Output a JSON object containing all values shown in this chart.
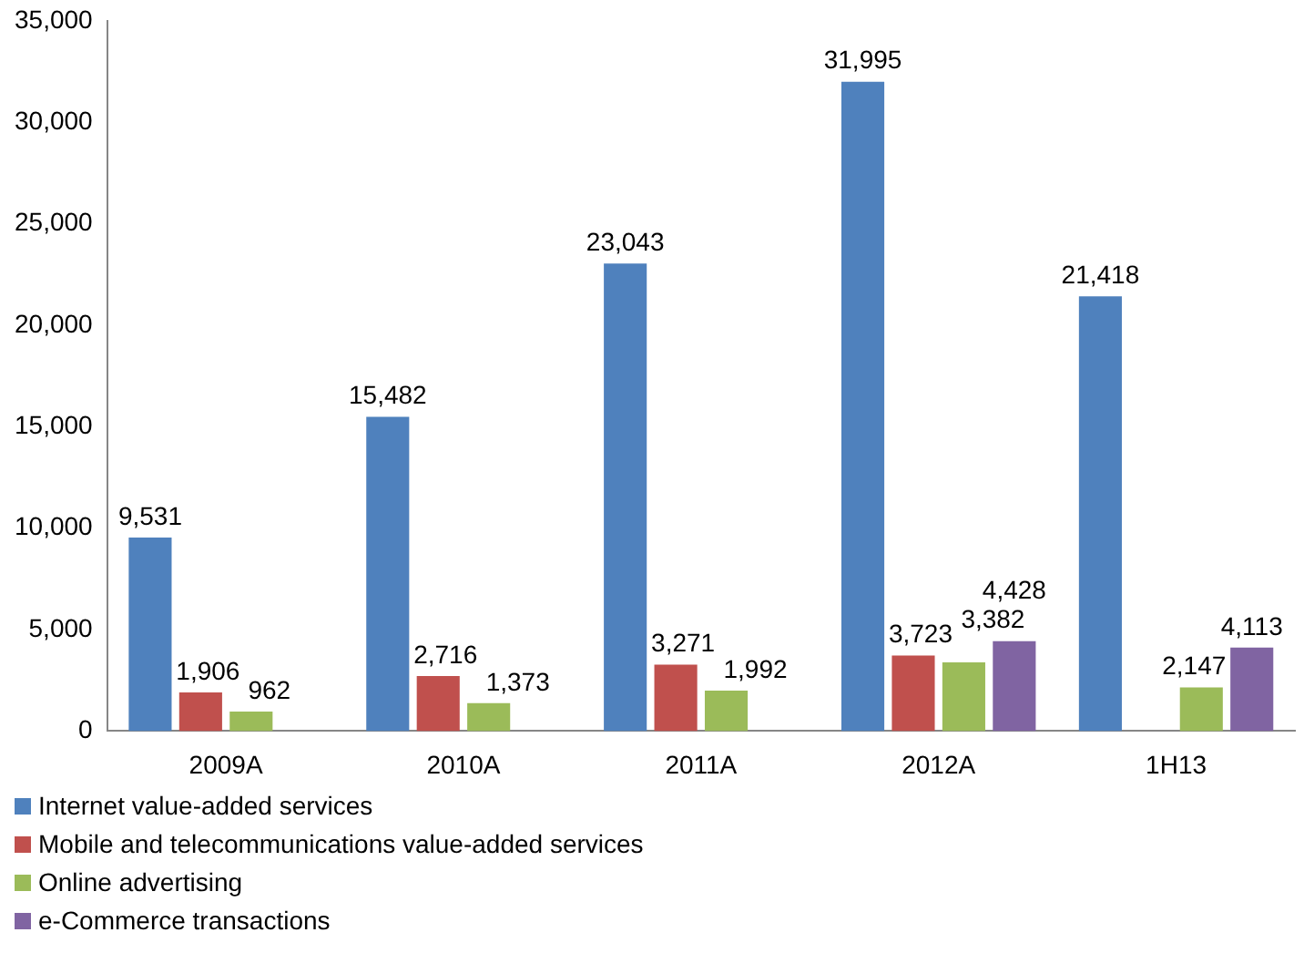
{
  "chart_data": {
    "type": "bar",
    "categories": [
      "2009A",
      "2010A",
      "2011A",
      "2012A",
      "1H13"
    ],
    "series": [
      {
        "name": "Internet value-added services",
        "color": "#4f81bd",
        "values": [
          9531,
          15482,
          23043,
          31995,
          21418
        ],
        "value_labels": [
          "9,531",
          "15,482",
          "23,043",
          "31,995",
          "21,418"
        ]
      },
      {
        "name": "Mobile and telecommunications value-added services",
        "color": "#c0504d",
        "values": [
          1906,
          2716,
          3271,
          3723,
          null
        ],
        "value_labels": [
          "1,906",
          "2,716",
          "3,271",
          "3,723",
          null
        ]
      },
      {
        "name": "Online advertising",
        "color": "#9bbb59",
        "values": [
          962,
          1373,
          1992,
          3382,
          2147
        ],
        "value_labels": [
          "962",
          "1,373",
          "1,992",
          "3,382",
          "2,147"
        ]
      },
      {
        "name": "e-Commerce transactions",
        "color": "#8064a2",
        "values": [
          null,
          null,
          null,
          4428,
          4113
        ],
        "value_labels": [
          null,
          null,
          null,
          "4,428",
          "4,113"
        ]
      }
    ],
    "ylim": [
      0,
      35000
    ],
    "yticks": [
      0,
      {
        "value": 5000,
        "label": "5,000"
      },
      {
        "value": 10000,
        "label": "10,000"
      },
      {
        "value": 15000,
        "label": "15,000"
      },
      {
        "value": 20000,
        "label": "20,000"
      },
      {
        "value": 25000,
        "label": "25,000"
      },
      {
        "value": 30000,
        "label": "30,000"
      },
      {
        "value": 35000,
        "label": "35,000"
      }
    ],
    "grid": false,
    "legend": "bottom"
  }
}
